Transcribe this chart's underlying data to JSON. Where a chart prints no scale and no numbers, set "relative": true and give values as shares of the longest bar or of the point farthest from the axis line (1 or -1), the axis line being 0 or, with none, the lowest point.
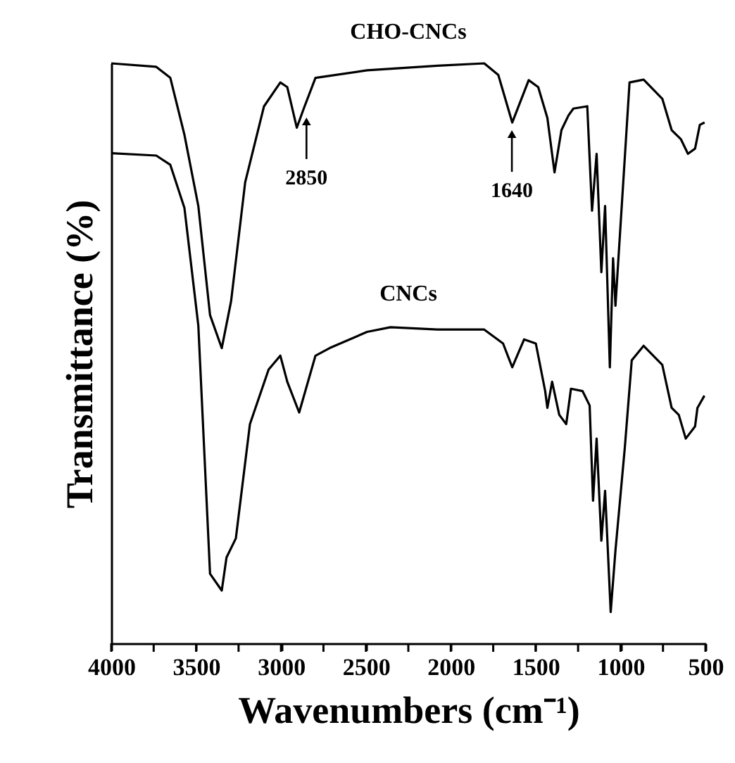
{
  "chart_data": {
    "type": "line",
    "relative": true,
    "xlabel": "Wavenumbers (cm⁻¹)",
    "ylabel": "Transmittance (%)",
    "xlim": [
      4000,
      500
    ],
    "xticks": [
      4000,
      {
        "value": 3750,
        "label": null
      },
      3500,
      {
        "value": 3250,
        "label": null
      },
      3000,
      {
        "value": 2750,
        "label": null
      },
      2500,
      {
        "value": 2250,
        "label": null
      },
      2000,
      {
        "value": 1750,
        "label": null
      },
      1500,
      {
        "value": 1250,
        "label": null
      },
      1000,
      {
        "value": 750,
        "label": null
      },
      500
    ],
    "tick_labels": "x",
    "grid": false,
    "legend": false,
    "marker": "none",
    "line_style": "solid",
    "series": [
      {
        "name": "CHO-CNCs",
        "color": "#000000",
        "x": [
          4000,
          3735,
          3652,
          3569,
          3487,
          3418,
          3349,
          3294,
          3211,
          3100,
          3004,
          2963,
          2907,
          2866,
          2797,
          2493,
          2079,
          1803,
          1720,
          1638,
          1541,
          1485,
          1431,
          1389,
          1348,
          1307,
          1278,
          1196,
          1168,
          1141,
          1113,
          1091,
          1063,
          1044,
          1030,
          947,
          864,
          754,
          699,
          644,
          603,
          561,
          533,
          505
        ],
        "values": [
          1.0,
          0.994,
          0.975,
          0.877,
          0.754,
          0.566,
          0.509,
          0.59,
          0.795,
          0.926,
          0.967,
          0.959,
          0.889,
          0.922,
          0.975,
          0.988,
          0.996,
          1.0,
          0.98,
          0.898,
          0.971,
          0.959,
          0.906,
          0.812,
          0.885,
          0.91,
          0.922,
          0.926,
          0.746,
          0.844,
          0.64,
          0.754,
          0.476,
          0.664,
          0.582,
          0.967,
          0.972,
          0.939,
          0.885,
          0.869,
          0.844,
          0.853,
          0.894,
          0.898
        ]
      },
      {
        "name": "CNCs",
        "color": "#000000",
        "x": [
          4000,
          3735,
          3652,
          3569,
          3487,
          3418,
          3349,
          3321,
          3266,
          3183,
          3073,
          3004,
          2963,
          2893,
          2797,
          2714,
          2493,
          2355,
          2079,
          1803,
          1692,
          1638,
          1568,
          1499,
          1444,
          1431,
          1403,
          1361,
          1320,
          1292,
          1224,
          1182,
          1162,
          1141,
          1113,
          1091,
          1058,
          1030,
          975,
          934,
          864,
          754,
          699,
          657,
          616,
          561,
          547,
          506
        ],
        "values": [
          0.845,
          0.841,
          0.825,
          0.751,
          0.548,
          0.12,
          0.091,
          0.148,
          0.181,
          0.378,
          0.472,
          0.496,
          0.451,
          0.398,
          0.496,
          0.509,
          0.537,
          0.545,
          0.541,
          0.541,
          0.517,
          0.476,
          0.524,
          0.517,
          0.435,
          0.406,
          0.451,
          0.394,
          0.378,
          0.439,
          0.435,
          0.41,
          0.246,
          0.353,
          0.177,
          0.263,
          0.054,
          0.16,
          0.337,
          0.488,
          0.513,
          0.48,
          0.406,
          0.394,
          0.353,
          0.374,
          0.406,
          0.427
        ]
      }
    ],
    "annotations": [
      {
        "text": "2850",
        "x": 2850,
        "y": 0.92
      },
      {
        "text": "1640",
        "x": 1640,
        "y": 0.898
      }
    ]
  }
}
